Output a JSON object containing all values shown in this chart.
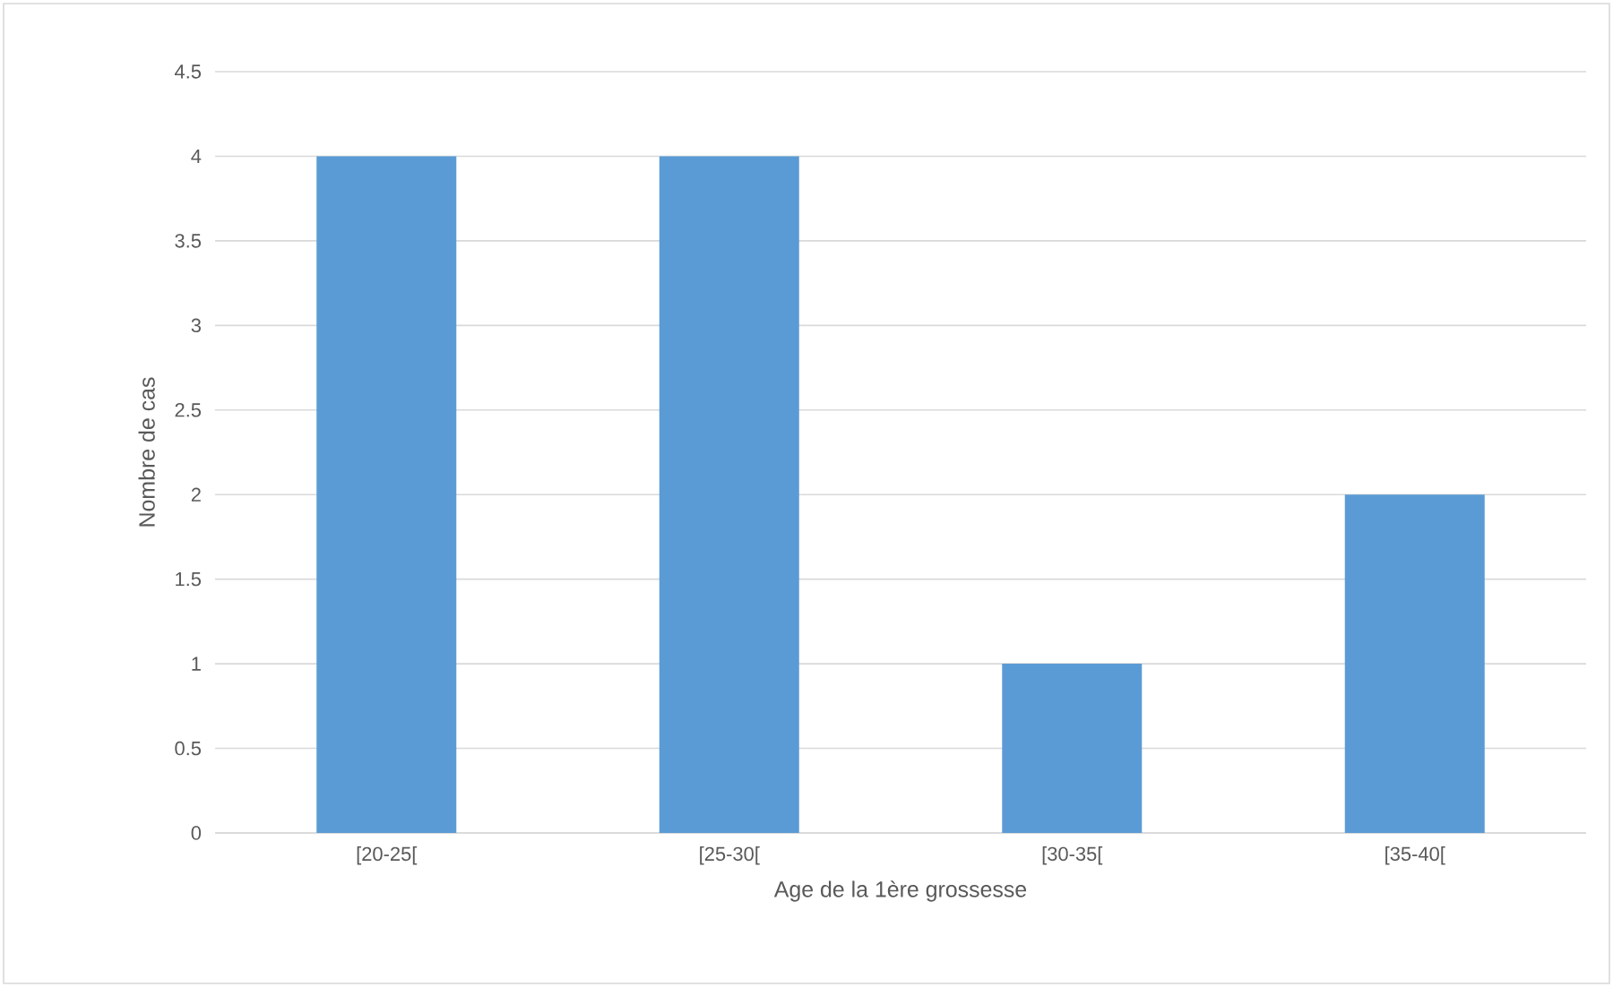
{
  "chart_data": {
    "type": "bar",
    "xlabel": "Age de la 1ère grossesse",
    "ylabel": "Nombre de cas",
    "categories": [
      "[20-25[",
      "[25-30[",
      "[30-35[",
      "[35-40["
    ],
    "values": [
      4,
      4,
      1,
      2
    ],
    "color": "#5b9bd5",
    "ylim": [
      0,
      4.5
    ],
    "yticks": [
      0,
      0.5,
      1,
      1.5,
      2,
      2.5,
      3,
      3.5,
      4,
      4.5
    ],
    "grid": "y"
  }
}
